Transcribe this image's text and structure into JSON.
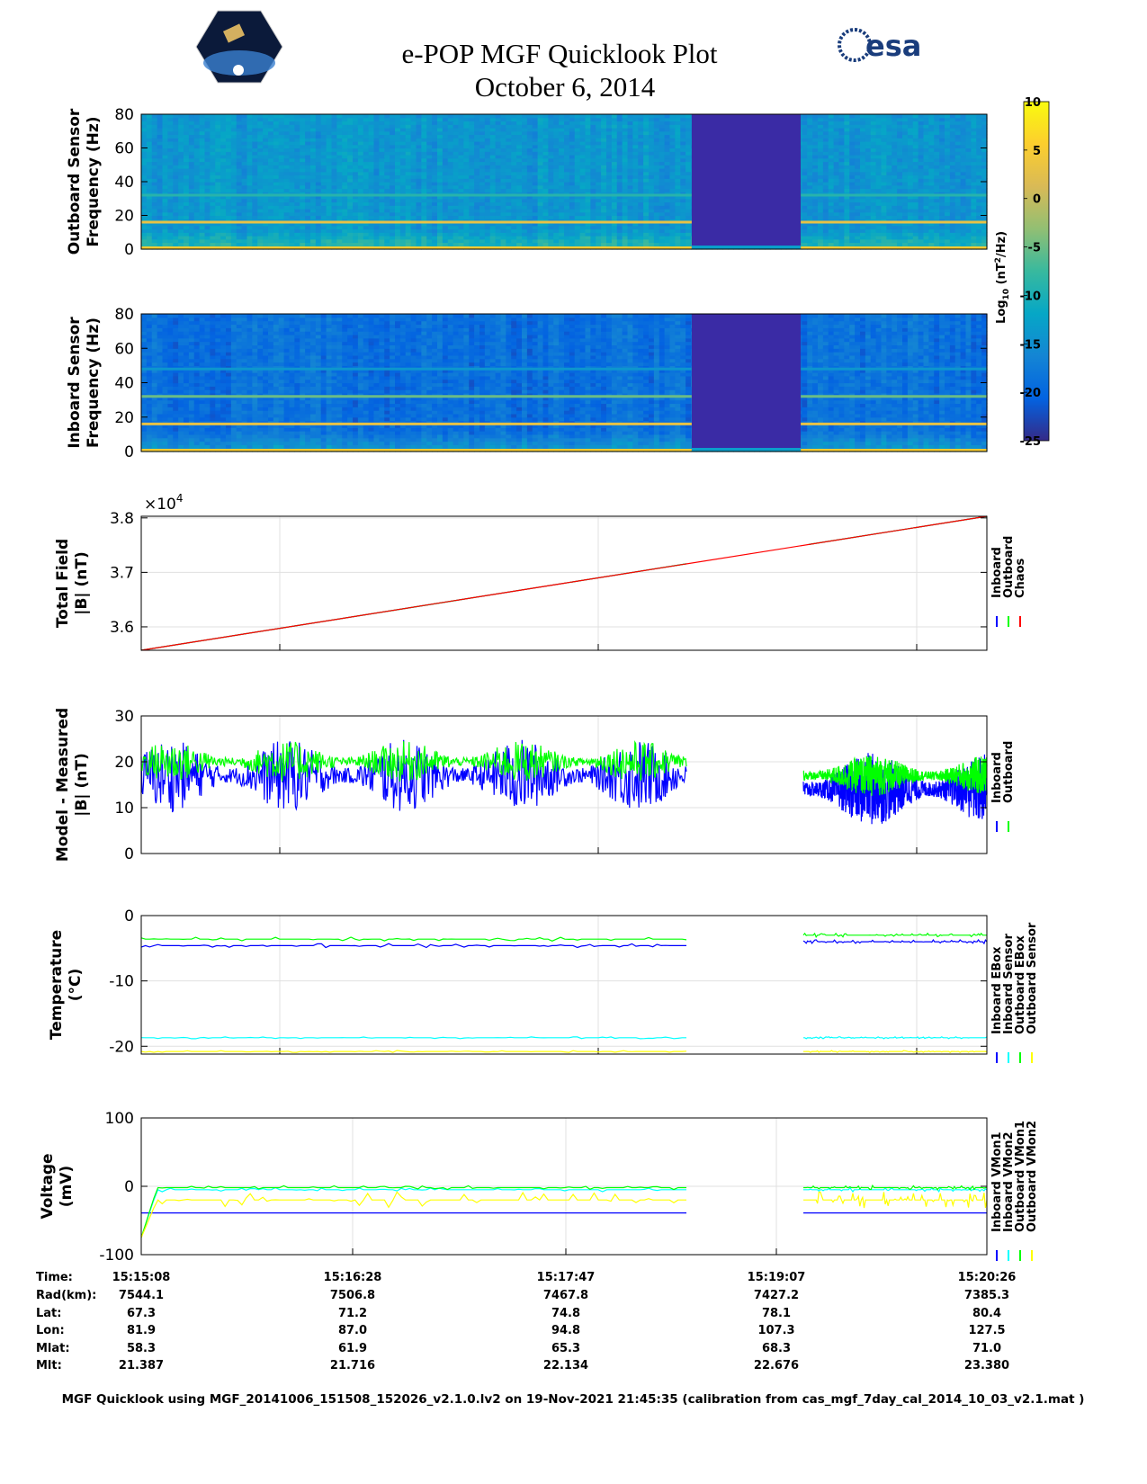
{
  "header": {
    "title": "e-POP MGF Quicklook Plot",
    "date": "October 6, 2014",
    "left_logo": "CASSIOPE",
    "right_logo": "esa"
  },
  "colors": {
    "inboard": "#0000ff",
    "outboard": "#00ff00",
    "chaos": "#ff0000",
    "cyan": "#00ffff",
    "yellow": "#ffff00",
    "gap": "#3a2ba5"
  },
  "chart_data": [
    {
      "type": "heatmap",
      "id": "outboard-spectrogram",
      "ylabel": [
        "Outboard Sensor",
        "Frequency (Hz)"
      ],
      "ylim": [
        0,
        80
      ],
      "yticks": [
        "0",
        "20",
        "40",
        "60",
        "80"
      ],
      "background_log10": -14,
      "lines_hz": [
        {
          "freq": 16,
          "level": 3
        },
        {
          "freq": 32,
          "level": -9
        }
      ],
      "data_gap_seconds": [
        207,
        248
      ]
    },
    {
      "type": "heatmap",
      "id": "inboard-spectrogram",
      "ylabel": [
        "Inboard Sensor",
        "Frequency (Hz)"
      ],
      "ylim": [
        0,
        80
      ],
      "yticks": [
        "0",
        "20",
        "40",
        "60",
        "80"
      ],
      "background_log10": -19,
      "lines_hz": [
        {
          "freq": 16,
          "level": 3
        },
        {
          "freq": 32,
          "level": -5
        },
        {
          "freq": 48,
          "level": -14
        }
      ],
      "data_gap_seconds": [
        207,
        248
      ]
    },
    {
      "type": "colorbar",
      "label_main": "Log",
      "label_sub": "10",
      "label_rest": " (nT",
      "label_sup": "2",
      "label_end": "/Hz)",
      "range": [
        -25,
        10
      ],
      "ticks": [
        "10",
        "5",
        "0",
        "-5",
        "-10",
        "-15",
        "-20",
        "-25"
      ],
      "colormap": [
        "#352a87",
        "#0363e1",
        "#1485d4",
        "#06a7c6",
        "#38b99e",
        "#92bf73",
        "#d9ba56",
        "#fcce2e",
        "#f9fb0e"
      ]
    },
    {
      "type": "line",
      "id": "total-field",
      "ylabel": [
        "Total Field",
        "|B| (nT)"
      ],
      "exponent": "×10",
      "exponent_power": "4",
      "ylim": [
        3.557,
        3.803
      ],
      "yticks": [
        "3.6",
        "3.7",
        "3.8"
      ],
      "series": [
        {
          "name": "Inboard",
          "color": "#0000ff",
          "start": 3.557,
          "end": 3.803,
          "gap": true
        },
        {
          "name": "Outboard",
          "color": "#00ff00",
          "start": 3.557,
          "end": 3.803,
          "gap": true
        },
        {
          "name": "Chaos",
          "color": "#ff0000",
          "start": 3.557,
          "end": 3.803,
          "gap": false
        }
      ]
    },
    {
      "type": "line",
      "id": "model-minus-measured",
      "ylabel": [
        "Model - Measured",
        "|B| (nT)"
      ],
      "ylim": [
        0,
        30
      ],
      "yticks": [
        "0",
        "10",
        "20",
        "30"
      ],
      "series": [
        {
          "name": "Inboard",
          "color": "#0000ff",
          "mean": [
            17,
            14
          ],
          "amp": 8
        },
        {
          "name": "Outboard",
          "color": "#00ff00",
          "mean": [
            20,
            17
          ],
          "amp": 4.5
        }
      ]
    },
    {
      "type": "line",
      "id": "temperature",
      "ylabel": [
        "Temperature",
        "(°C)"
      ],
      "ylim": [
        -21.2,
        0
      ],
      "yticks": [
        "-20",
        "-10",
        "0"
      ],
      "series": [
        {
          "name": "Inboard EBox",
          "color": "#0000ff",
          "mean": [
            -4.6,
            -4.0
          ],
          "amp": 0.3
        },
        {
          "name": "Inboard Sensor",
          "color": "#00ffff",
          "mean": [
            -18.7,
            -18.7
          ],
          "amp": 0.15
        },
        {
          "name": "Outboard EBox",
          "color": "#00ff00",
          "mean": [
            -3.6,
            -3.0
          ],
          "amp": 0.3
        },
        {
          "name": "Outboard Sensor",
          "color": "#ffff00",
          "mean": [
            -20.8,
            -20.8
          ],
          "amp": 0.15
        }
      ]
    },
    {
      "type": "line",
      "id": "voltage",
      "ylabel": [
        "Voltage",
        "(mV)"
      ],
      "ylim": [
        -100,
        100
      ],
      "yticks": [
        "-100",
        "0",
        "100"
      ],
      "series": [
        {
          "name": "Inboard VMon1",
          "color": "#0000ff",
          "mean": [
            -39,
            -39
          ],
          "amp": 0
        },
        {
          "name": "Inboard VMon2",
          "color": "#00ffff",
          "mean": [
            -5,
            -5
          ],
          "amp": 3
        },
        {
          "name": "Outboard VMon1",
          "color": "#00ff00",
          "mean": [
            -2,
            -2
          ],
          "amp": 3
        },
        {
          "name": "Outboard VMon2",
          "color": "#ffff00",
          "mean": [
            -20,
            -20
          ],
          "amp": 12
        }
      ]
    }
  ],
  "time_axis": {
    "span_seconds": 318,
    "gap_seconds": [
      207,
      248
    ]
  },
  "ephemeris": {
    "labels": [
      "Time:",
      "Rad(km):",
      "Lat:",
      "Lon:",
      "Mlat:",
      "Mlt:"
    ],
    "columns": [
      [
        "15:15:08",
        "7544.1",
        "67.3",
        "81.9",
        "58.3",
        "21.387"
      ],
      [
        "15:16:28",
        "7506.8",
        "71.2",
        "87.0",
        "61.9",
        "21.716"
      ],
      [
        "15:17:47",
        "7467.8",
        "74.8",
        "94.8",
        "65.3",
        "22.134"
      ],
      [
        "15:19:07",
        "7427.2",
        "78.1",
        "107.3",
        "68.3",
        "22.676"
      ],
      [
        "15:20:26",
        "7385.3",
        "80.4",
        "127.5",
        "71.0",
        "23.380"
      ]
    ]
  },
  "footer": "MGF Quicklook using MGF_20141006_151508_152026_v2.1.0.lv2 on 19-Nov-2021 21:45:35 (calibration from cas_mgf_7day_cal_2014_10_03_v2.1.mat )"
}
